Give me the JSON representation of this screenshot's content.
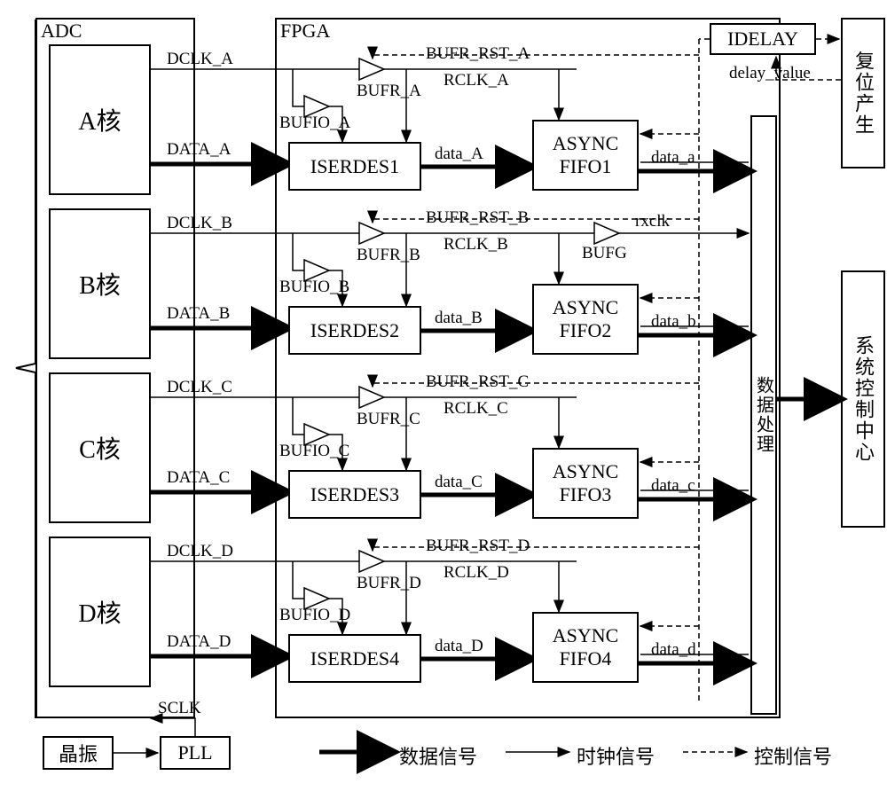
{
  "adc": {
    "title": "ADC",
    "cores": [
      "A核",
      "B核",
      "C核",
      "D核"
    ],
    "dclk": [
      "DCLK_A",
      "DCLK_B",
      "DCLK_C",
      "DCLK_D"
    ],
    "data": [
      "DATA_A",
      "DATA_B",
      "DATA_C",
      "DATA_D"
    ],
    "sclk": "SCLK"
  },
  "fpga": {
    "title": "FPGA",
    "bufio": [
      "BUFIO_A",
      "BUFIO_B",
      "BUFIO_C",
      "BUFIO_D"
    ],
    "bufr": [
      "BUFR_A",
      "BUFR_B",
      "BUFR_C",
      "BUFR_D"
    ],
    "bufr_rst": [
      "BUFR_RST_A",
      "BUFR_RST_B",
      "BUFR_RST_C",
      "BUFR_RST_D"
    ],
    "rclk": [
      "RCLK_A",
      "RCLK_B",
      "RCLK_C",
      "RCLK_D"
    ],
    "iserdes": [
      "ISERDES1",
      "ISERDES2",
      "ISERDES3",
      "ISERDES4"
    ],
    "async_fifo": [
      "ASYNC\nFIFO1",
      "ASYNC\nFIFO2",
      "ASYNC\nFIFO3",
      "ASYNC\nFIFO4"
    ],
    "mid_data": [
      "data_A",
      "data_B",
      "data_C",
      "data_D"
    ],
    "out_data": [
      "data_a",
      "data_b",
      "data_c",
      "data_d"
    ],
    "bufg": "BUFG",
    "rxclk": "rxclk",
    "data_processing": "数据处理",
    "idelay": "IDELAY",
    "delay_value": "delay_value"
  },
  "external": {
    "reset_gen": "复位产生",
    "sys_ctrl": "系统控制中心",
    "crystal": "晶振",
    "pll": "PLL"
  },
  "legend": {
    "data_signal": "数据信号",
    "clock_signal": "时钟信号",
    "ctrl_signal": "控制信号"
  },
  "colors": {
    "stroke": "#000000",
    "bg": "#ffffff"
  },
  "fontsizes": {
    "block": 22,
    "label": 19
  }
}
